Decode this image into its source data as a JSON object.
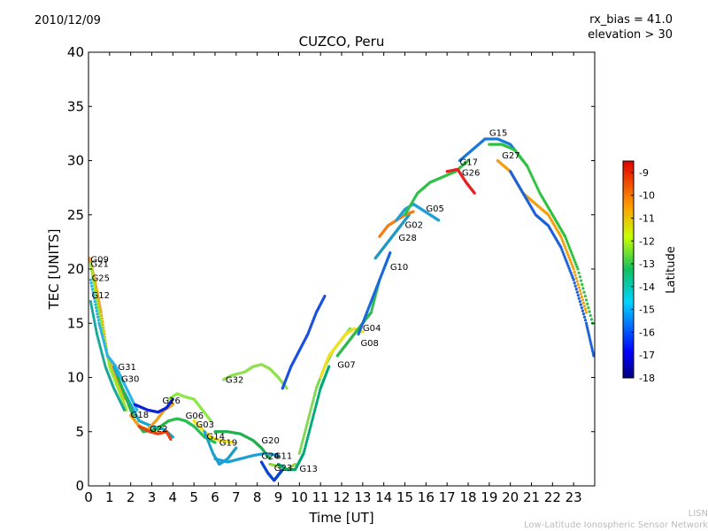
{
  "header": {
    "date": "2010/12/09",
    "rx_bias": "rx_bias = 41.0",
    "elevation": "elevation > 30"
  },
  "footer": {
    "line1": "LISN",
    "line2": "Low-Latitude Ionospheric Sensor Network"
  },
  "chart_data": {
    "type": "scatter",
    "title": "CUZCO, Peru",
    "xlabel": "Time [UT]",
    "ylabel": "TEC [UNITS]",
    "xlim": [
      0,
      24
    ],
    "ylim": [
      0,
      40
    ],
    "xticks": [
      0,
      1,
      2,
      3,
      4,
      5,
      6,
      7,
      8,
      9,
      10,
      11,
      12,
      13,
      14,
      15,
      16,
      17,
      18,
      19,
      20,
      21,
      22,
      23
    ],
    "yticks": [
      0,
      5,
      10,
      15,
      20,
      25,
      30,
      35,
      40
    ],
    "grid": false,
    "colorbar": {
      "label": "Latitude",
      "range": [
        -18,
        -8.5
      ],
      "ticks": [
        -9,
        -10,
        -11,
        -12,
        -13,
        -14,
        -15,
        -16,
        -17,
        -18
      ],
      "colormap": "jet"
    },
    "series": [
      {
        "name": "G09",
        "color": "#f5a623",
        "points": [
          [
            0.05,
            21
          ],
          [
            0.3,
            19
          ],
          [
            0.6,
            16
          ],
          [
            0.9,
            12
          ],
          [
            1.3,
            10
          ],
          [
            1.7,
            8
          ]
        ]
      },
      {
        "name": "G21",
        "color": "#9be82a",
        "points": [
          [
            0.1,
            20.5
          ],
          [
            0.4,
            17
          ],
          [
            0.7,
            14
          ],
          [
            1.0,
            11
          ],
          [
            1.4,
            9
          ],
          [
            1.8,
            7
          ]
        ]
      },
      {
        "name": "G25",
        "color": "#29b3e8",
        "points": [
          [
            0.1,
            19
          ],
          [
            0.5,
            15
          ],
          [
            0.9,
            12
          ],
          [
            1.3,
            11
          ],
          [
            1.8,
            9
          ],
          [
            2.3,
            7
          ]
        ]
      },
      {
        "name": "G12",
        "color": "#1aa79b",
        "points": [
          [
            0.1,
            17
          ],
          [
            0.4,
            14
          ],
          [
            0.8,
            11
          ],
          [
            1.2,
            9
          ],
          [
            1.7,
            7
          ]
        ]
      },
      {
        "name": "G31",
        "color": "#18a7c9",
        "points": [
          [
            1.2,
            11
          ],
          [
            1.6,
            9
          ],
          [
            2.0,
            7.5
          ],
          [
            2.4,
            6
          ],
          [
            3.0,
            5.5
          ],
          [
            3.6,
            5.2
          ],
          [
            4.0,
            4.5
          ]
        ]
      },
      {
        "name": "G30",
        "color": "#26b34a",
        "points": [
          [
            1.4,
            10
          ],
          [
            1.8,
            8
          ],
          [
            2.2,
            6
          ],
          [
            2.6,
            5
          ],
          [
            3.2,
            5.2
          ],
          [
            3.8,
            6
          ]
        ]
      },
      {
        "name": "G18",
        "color": "#f0a020",
        "points": [
          [
            2.0,
            6.5
          ],
          [
            2.4,
            5.5
          ],
          [
            2.8,
            5.2
          ],
          [
            3.2,
            6
          ],
          [
            3.6,
            7
          ],
          [
            4.0,
            7.5
          ]
        ]
      },
      {
        "name": "G22",
        "color": "#e84010",
        "points": [
          [
            2.4,
            5.5
          ],
          [
            2.9,
            5
          ],
          [
            3.3,
            4.8
          ],
          [
            3.7,
            5
          ],
          [
            3.9,
            4.3
          ]
        ]
      },
      {
        "name": "G16",
        "color": "#0a22d8",
        "points": [
          [
            2.2,
            7.5
          ],
          [
            2.8,
            7
          ],
          [
            3.3,
            6.8
          ],
          [
            3.7,
            7.2
          ],
          [
            4.0,
            8
          ]
        ]
      },
      {
        "name": "G06",
        "color": "#8ee84a",
        "points": [
          [
            3.8,
            8
          ],
          [
            4.2,
            8.5
          ],
          [
            4.6,
            8.2
          ],
          [
            5.0,
            8
          ],
          [
            5.4,
            7
          ],
          [
            5.8,
            6
          ]
        ]
      },
      {
        "name": "G03",
        "color": "#29c050",
        "points": [
          [
            3.8,
            6
          ],
          [
            4.2,
            6.2
          ],
          [
            4.6,
            6
          ],
          [
            5.0,
            5.5
          ],
          [
            5.5,
            4.5
          ],
          [
            6.0,
            4
          ]
        ]
      },
      {
        "name": "G14",
        "color": "#f0e010",
        "points": [
          [
            5.0,
            6
          ],
          [
            5.5,
            5
          ],
          [
            5.8,
            4.5
          ],
          [
            6.2,
            4.2
          ],
          [
            6.8,
            4
          ]
        ]
      },
      {
        "name": "G19",
        "color": "#1da0c8",
        "points": [
          [
            5.5,
            5
          ],
          [
            5.9,
            3
          ],
          [
            6.2,
            2
          ],
          [
            6.6,
            2.5
          ],
          [
            7.0,
            3.5
          ]
        ]
      },
      {
        "name": "G32",
        "color": "#90e050",
        "points": [
          [
            6.4,
            9.8
          ],
          [
            6.8,
            10.2
          ],
          [
            7.4,
            10.5
          ],
          [
            7.8,
            11
          ],
          [
            8.2,
            11.2
          ],
          [
            8.6,
            10.8
          ],
          [
            9.0,
            10
          ],
          [
            9.4,
            9
          ]
        ]
      },
      {
        "name": "G20",
        "color": "#20b050",
        "points": [
          [
            6.0,
            5
          ],
          [
            6.6,
            5
          ],
          [
            7.2,
            4.8
          ],
          [
            7.8,
            4.2
          ],
          [
            8.2,
            3.5
          ],
          [
            8.6,
            2.5
          ]
        ]
      },
      {
        "name": "G24",
        "color": "#1aa0d8",
        "points": [
          [
            6.0,
            2.5
          ],
          [
            6.6,
            2.2
          ],
          [
            7.2,
            2.5
          ],
          [
            7.8,
            2.8
          ],
          [
            8.4,
            3
          ],
          [
            9.0,
            2.8
          ]
        ]
      },
      {
        "name": "G11",
        "color": "#0a44d0",
        "points": [
          [
            8.2,
            2.2
          ],
          [
            8.5,
            1.2
          ],
          [
            8.8,
            0.5
          ],
          [
            9.0,
            1
          ],
          [
            9.2,
            1.5
          ]
        ]
      },
      {
        "name": "G23",
        "color": "#98d048",
        "points": [
          [
            8.6,
            2
          ],
          [
            9.0,
            1.8
          ],
          [
            9.4,
            1.5
          ],
          [
            9.8,
            2
          ]
        ]
      },
      {
        "name": "G13",
        "color": "#00a878",
        "points": [
          [
            9.0,
            2
          ],
          [
            9.4,
            1.5
          ],
          [
            9.8,
            1.5
          ],
          [
            10.2,
            3
          ],
          [
            10.6,
            6
          ],
          [
            11.0,
            9
          ],
          [
            11.4,
            11
          ]
        ]
      },
      {
        "name": "G07",
        "color": "#80d850",
        "points": [
          [
            10.0,
            3
          ],
          [
            10.4,
            6
          ],
          [
            10.8,
            9
          ],
          [
            11.2,
            11
          ],
          [
            11.6,
            12.5
          ],
          [
            12.0,
            13.5
          ],
          [
            12.4,
            14.5
          ]
        ]
      },
      {
        "name": "G08",
        "color": "#f0e020",
        "points": [
          [
            11.0,
            10
          ],
          [
            11.4,
            12
          ],
          [
            11.8,
            13
          ],
          [
            12.2,
            14
          ],
          [
            12.6,
            14.5
          ],
          [
            13.0,
            14.2
          ]
        ]
      },
      {
        "name": "G04",
        "color": "#30b850",
        "points": [
          [
            11.8,
            12
          ],
          [
            12.2,
            13
          ],
          [
            12.6,
            14
          ],
          [
            13.0,
            15
          ],
          [
            13.4,
            16
          ],
          [
            13.8,
            19
          ]
        ]
      },
      {
        "name": "G10",
        "color": "#1868d8",
        "points": [
          [
            12.8,
            14
          ],
          [
            13.2,
            16
          ],
          [
            13.6,
            18
          ],
          [
            14.0,
            20
          ],
          [
            14.3,
            21.5
          ]
        ]
      },
      {
        "name": "G28",
        "color": "#2098c0",
        "points": [
          [
            13.6,
            21
          ],
          [
            14.0,
            22
          ],
          [
            14.4,
            23
          ],
          [
            14.8,
            24
          ],
          [
            15.2,
            25
          ]
        ]
      },
      {
        "name": "G02",
        "color": "#f08018",
        "points": [
          [
            13.8,
            23
          ],
          [
            14.2,
            24
          ],
          [
            14.6,
            24.5
          ],
          [
            15.0,
            25
          ],
          [
            15.4,
            25.3
          ]
        ]
      },
      {
        "name": "G05",
        "color": "#20a0d8",
        "points": [
          [
            14.6,
            24.5
          ],
          [
            15.0,
            25.5
          ],
          [
            15.4,
            26
          ],
          [
            15.8,
            25.5
          ],
          [
            16.2,
            25
          ],
          [
            16.6,
            24.5
          ]
        ]
      },
      {
        "name": "G17",
        "color": "#30c048",
        "points": [
          [
            15.0,
            25
          ],
          [
            15.6,
            27
          ],
          [
            16.2,
            28
          ],
          [
            16.8,
            28.5
          ],
          [
            17.4,
            29
          ],
          [
            18.0,
            30
          ]
        ]
      },
      {
        "name": "G26",
        "color": "#e82020",
        "points": [
          [
            17.0,
            29
          ],
          [
            17.5,
            29.2
          ],
          [
            17.9,
            28
          ],
          [
            18.3,
            27
          ]
        ]
      },
      {
        "name": "G15",
        "color": "#1a78d8",
        "points": [
          [
            17.6,
            30
          ],
          [
            18.2,
            31
          ],
          [
            18.8,
            32
          ],
          [
            19.4,
            32
          ],
          [
            20.0,
            31.5
          ],
          [
            20.6,
            30
          ]
        ]
      },
      {
        "name": "G27",
        "color": "#f0a010",
        "points": [
          [
            19.4,
            30
          ],
          [
            20.0,
            29
          ],
          [
            20.6,
            27
          ],
          [
            21.2,
            26
          ],
          [
            21.8,
            25
          ],
          [
            22.4,
            23
          ],
          [
            23.0,
            20
          ],
          [
            23.6,
            16
          ]
        ]
      },
      {
        "name": "",
        "color": "#30c040",
        "points": [
          [
            19.0,
            31.5
          ],
          [
            19.6,
            31.5
          ],
          [
            20.2,
            31
          ],
          [
            20.8,
            29.5
          ],
          [
            21.4,
            27
          ],
          [
            22.0,
            25
          ],
          [
            22.6,
            23
          ],
          [
            23.2,
            20
          ],
          [
            23.9,
            15
          ]
        ]
      },
      {
        "name": "",
        "color": "#1a60d8",
        "points": [
          [
            20.0,
            29
          ],
          [
            20.6,
            27
          ],
          [
            21.2,
            25
          ],
          [
            21.8,
            24
          ],
          [
            22.4,
            22
          ],
          [
            23.0,
            19
          ],
          [
            23.6,
            15
          ],
          [
            23.95,
            12
          ]
        ]
      },
      {
        "name": "",
        "color": "#1a50e0",
        "points": [
          [
            9.2,
            9
          ],
          [
            9.6,
            11
          ],
          [
            10.0,
            12.5
          ],
          [
            10.4,
            14
          ],
          [
            10.8,
            16
          ],
          [
            11.2,
            17.5
          ]
        ]
      }
    ],
    "labels": [
      {
        "text": "G09",
        "x": 0.1,
        "y": 20.6
      },
      {
        "text": "G21",
        "x": 0.1,
        "y": 20.2
      },
      {
        "text": "G25",
        "x": 0.15,
        "y": 18.9
      },
      {
        "text": "G12",
        "x": 0.15,
        "y": 17.3
      },
      {
        "text": "G31",
        "x": 1.4,
        "y": 10.7
      },
      {
        "text": "G30",
        "x": 1.55,
        "y": 9.6
      },
      {
        "text": "G18",
        "x": 2.0,
        "y": 6.3
      },
      {
        "text": "G16",
        "x": 3.5,
        "y": 7.6
      },
      {
        "text": "G22",
        "x": 2.9,
        "y": 5.0
      },
      {
        "text": "G06",
        "x": 4.6,
        "y": 6.2
      },
      {
        "text": "G03",
        "x": 5.1,
        "y": 5.4
      },
      {
        "text": "G14",
        "x": 5.6,
        "y": 4.3
      },
      {
        "text": "G19",
        "x": 6.2,
        "y": 3.7
      },
      {
        "text": "G20",
        "x": 8.2,
        "y": 3.9
      },
      {
        "text": "G24",
        "x": 8.2,
        "y": 2.5
      },
      {
        "text": "G11",
        "x": 8.8,
        "y": 2.5
      },
      {
        "text": "G23",
        "x": 8.8,
        "y": 1.4
      },
      {
        "text": "G13",
        "x": 10.0,
        "y": 1.3
      },
      {
        "text": "G32",
        "x": 6.5,
        "y": 9.5
      },
      {
        "text": "G07",
        "x": 11.8,
        "y": 10.9
      },
      {
        "text": "G08",
        "x": 12.9,
        "y": 12.9
      },
      {
        "text": "G04",
        "x": 13.0,
        "y": 14.3
      },
      {
        "text": "G10",
        "x": 14.3,
        "y": 19.9
      },
      {
        "text": "G28",
        "x": 14.7,
        "y": 22.6
      },
      {
        "text": "G02",
        "x": 15.0,
        "y": 23.8
      },
      {
        "text": "G05",
        "x": 16.0,
        "y": 25.3
      },
      {
        "text": "G17",
        "x": 17.6,
        "y": 29.6
      },
      {
        "text": "G26",
        "x": 17.7,
        "y": 28.6
      },
      {
        "text": "G15",
        "x": 19.0,
        "y": 32.3
      },
      {
        "text": "G27",
        "x": 19.6,
        "y": 30.2
      }
    ]
  }
}
